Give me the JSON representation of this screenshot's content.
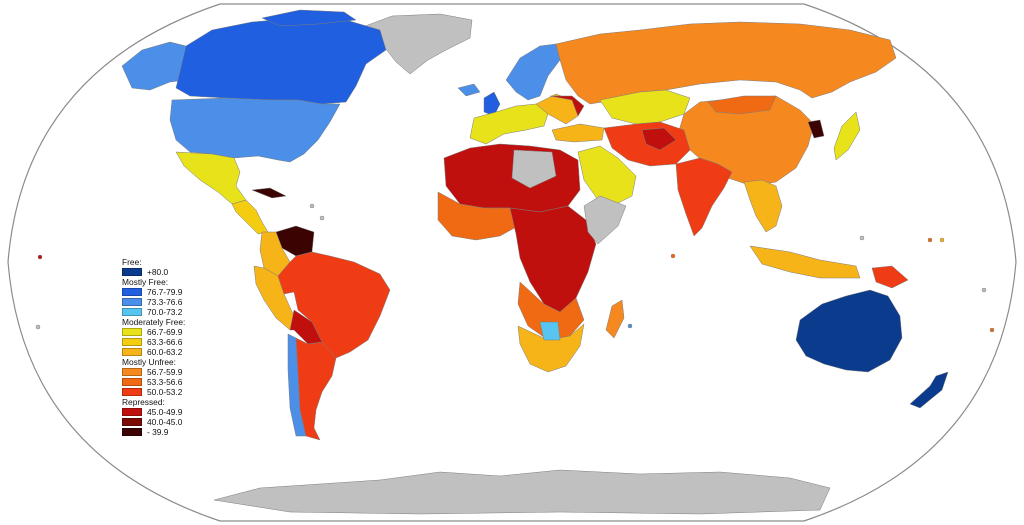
{
  "map": {
    "colors": {
      "ocean": "#ffffff",
      "outline": "#7d7d7d",
      "no_data": "#c0c0c0",
      "free": "#0b3b8c",
      "mostly_free_1": "#1f5fe0",
      "mostly_free_2": "#4b8fe8",
      "mostly_free_3": "#58c4f0",
      "moderately_free_1": "#e8e21a",
      "moderately_free_2": "#f4cc10",
      "moderately_free_3": "#f6b418",
      "mostly_unfree_1": "#f5891f",
      "mostly_unfree_2": "#f06a14",
      "mostly_unfree_3": "#ef3c14",
      "repressed_1": "#c0100e",
      "repressed_2": "#7a0b07",
      "repressed_3": "#3b0403"
    }
  },
  "legend": {
    "groups": [
      {
        "title": "Free:",
        "items": [
          {
            "range": "+80.0",
            "color": "#0b3b8c"
          }
        ]
      },
      {
        "title": "Mostly Free:",
        "items": [
          {
            "range": "76.7-79.9",
            "color": "#1f5fe0"
          },
          {
            "range": "73.3-76.6",
            "color": "#4b8fe8"
          },
          {
            "range": "70.0-73.2",
            "color": "#58c4f0"
          }
        ]
      },
      {
        "title": "Moderately Free:",
        "items": [
          {
            "range": "66.7-69.9",
            "color": "#e8e21a"
          },
          {
            "range": "63.3-66.6",
            "color": "#f4cc10"
          },
          {
            "range": "60.0-63.2",
            "color": "#f6b418"
          }
        ]
      },
      {
        "title": "Mostly Unfree:",
        "items": [
          {
            "range": "56.7-59.9",
            "color": "#f5891f"
          },
          {
            "range": "53.3-56.6",
            "color": "#f06a14"
          },
          {
            "range": "50.0-53.2",
            "color": "#ef3c14"
          }
        ]
      },
      {
        "title": "Repressed:",
        "items": [
          {
            "range": "45.0-49.9",
            "color": "#c0100e"
          },
          {
            "range": "40.0-45.0",
            "color": "#7a0b07"
          },
          {
            "range": "- 39.9",
            "color": "#3b0403"
          }
        ]
      }
    ]
  }
}
